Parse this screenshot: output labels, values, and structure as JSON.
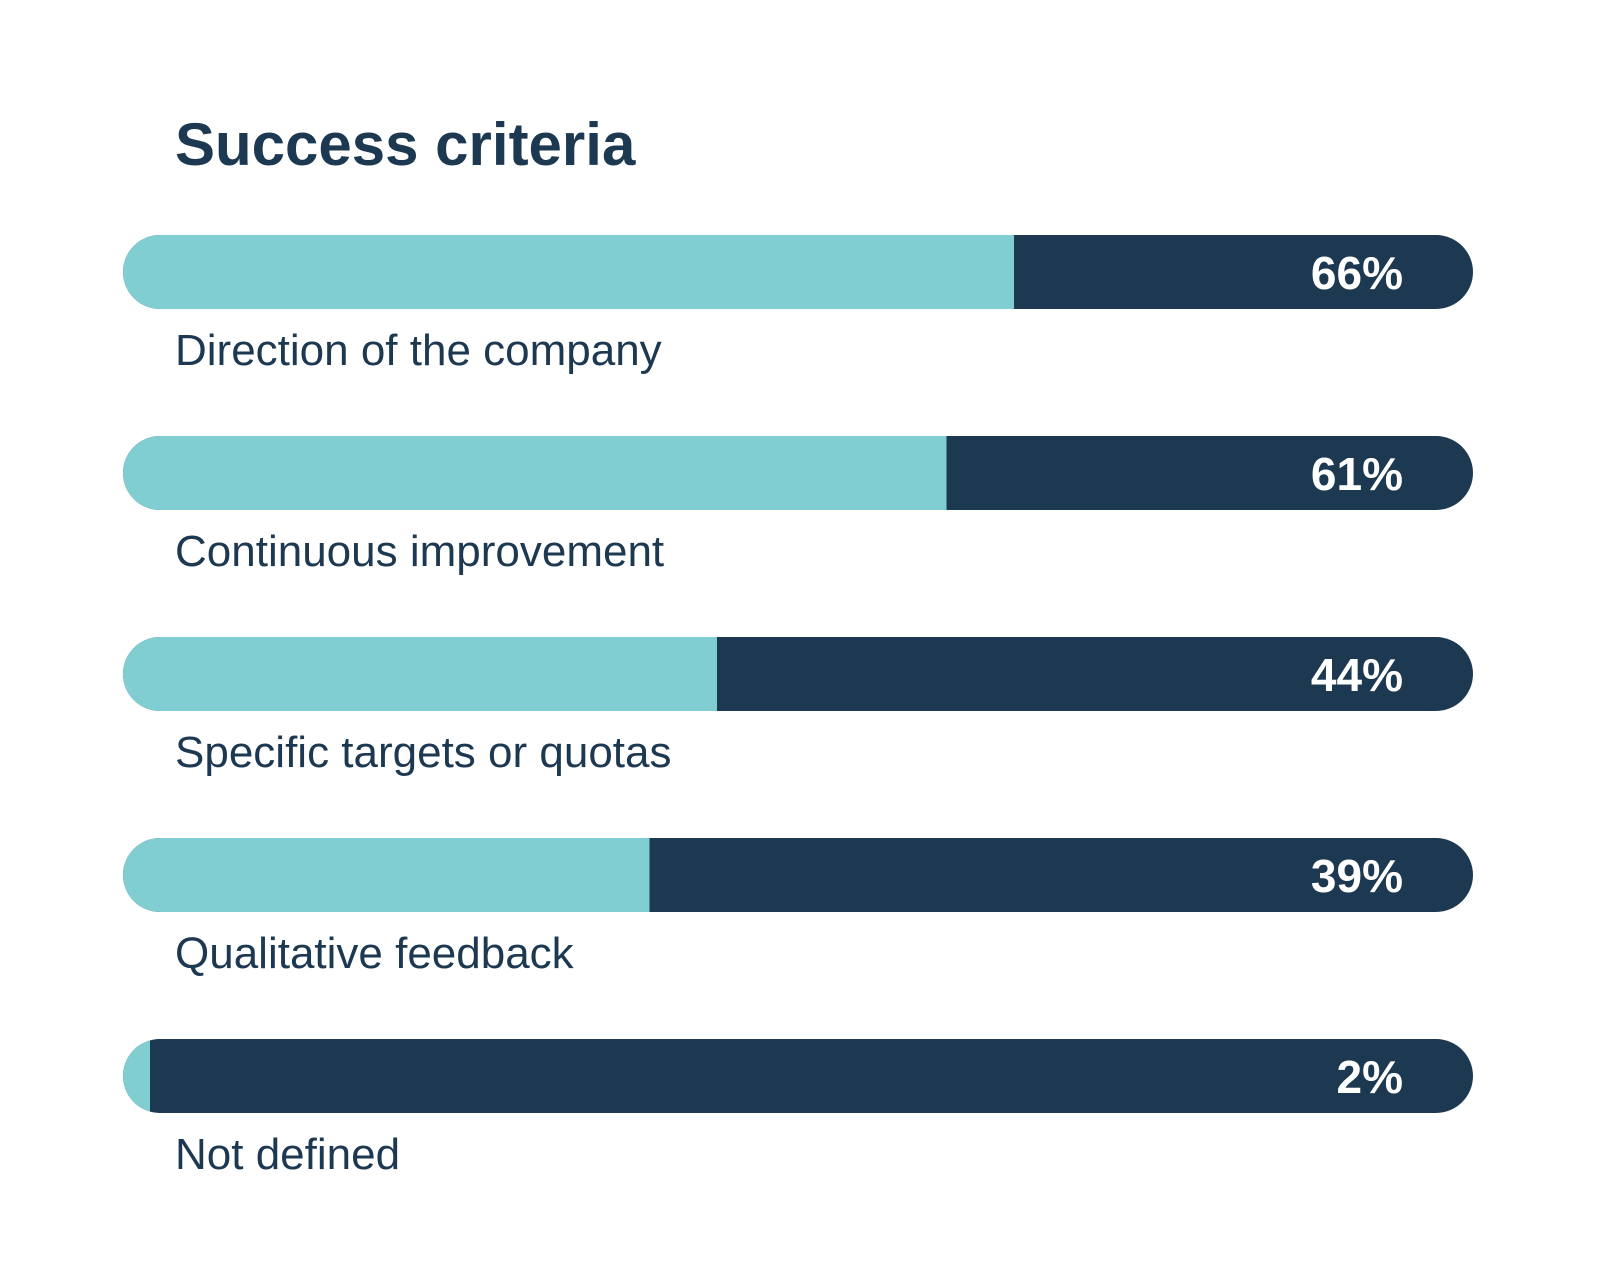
{
  "colors": {
    "accent": "#80CED2",
    "track": "#1D3851",
    "text": "#1D3851",
    "value_text": "#FFFFFF",
    "background": "#FFFFFF"
  },
  "chart_data": {
    "type": "bar",
    "orientation": "horizontal",
    "title": "Success criteria",
    "categories": [
      "Direction of the company",
      "Continuous improvement",
      "Specific targets or quotas",
      "Qualitative feedback",
      "Not defined"
    ],
    "values": [
      66,
      61,
      44,
      39,
      2
    ],
    "value_labels": [
      "66%",
      "61%",
      "44%",
      "39%",
      "2%"
    ],
    "unit": "%",
    "xlim": [
      0,
      100
    ],
    "grid": false,
    "legend": "none"
  }
}
